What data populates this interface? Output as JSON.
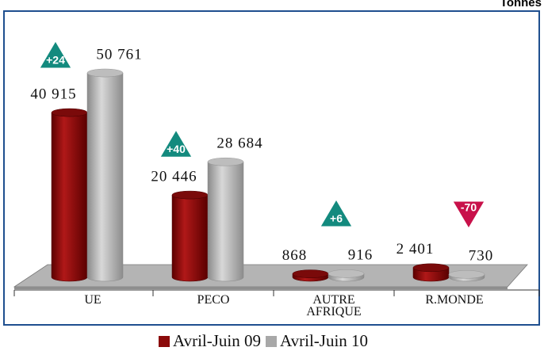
{
  "chart_data": {
    "type": "cylinder-bar",
    "unit": "Tonnes",
    "categories": [
      "UE",
      "PECO",
      "AUTRE AFRIQUE",
      "R.MONDE"
    ],
    "series": [
      {
        "name": "Avril-Juin 09",
        "color": "#8b0a0a",
        "values": [
          40915,
          20446,
          868,
          2401
        ],
        "value_labels": [
          "40 915",
          "20 446",
          "868",
          "2 401"
        ]
      },
      {
        "name": "Avril-Juin 10",
        "color": "#a8a8a8",
        "values": [
          50761,
          28684,
          916,
          730
        ],
        "value_labels": [
          "50 761",
          "28 684",
          "916",
          "730"
        ]
      }
    ],
    "annotations": [
      {
        "text": "+24",
        "direction": "up",
        "color": "#138a7e"
      },
      {
        "text": "+40",
        "direction": "up",
        "color": "#138a7e"
      },
      {
        "text": "+6",
        "direction": "up",
        "color": "#138a7e"
      },
      {
        "text": "-70",
        "direction": "down",
        "color": "#c8114a"
      }
    ]
  }
}
